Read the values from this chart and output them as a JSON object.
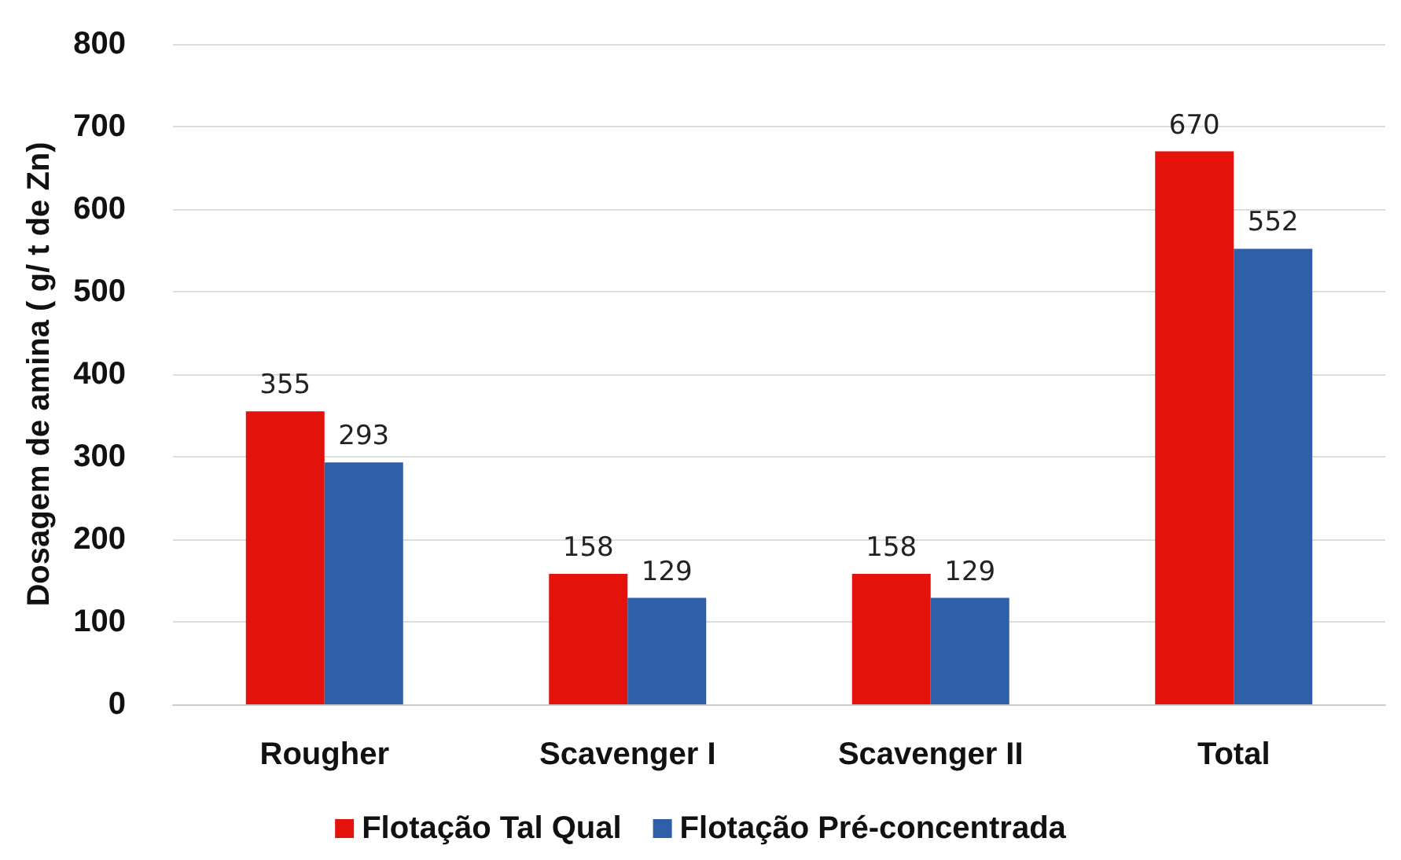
{
  "chart_data": {
    "type": "bar",
    "ylabel": "Dosagem de amina ( g/ t de Zn)",
    "categories": [
      "Rougher",
      "Scavenger I",
      "Scavenger II",
      "Total"
    ],
    "series": [
      {
        "name": "Flotação Tal Qual",
        "color": "#e3120b",
        "values": [
          355,
          158,
          158,
          670
        ]
      },
      {
        "name": "Flotação Pré-concentrada",
        "color": "#2e5fa8",
        "values": [
          293,
          129,
          129,
          552
        ]
      }
    ],
    "ylim": [
      0,
      800
    ],
    "yticks": [
      0,
      100,
      200,
      300,
      400,
      500,
      600,
      700,
      800
    ],
    "grid": "y",
    "legend": "bottom",
    "data_labels": true
  }
}
